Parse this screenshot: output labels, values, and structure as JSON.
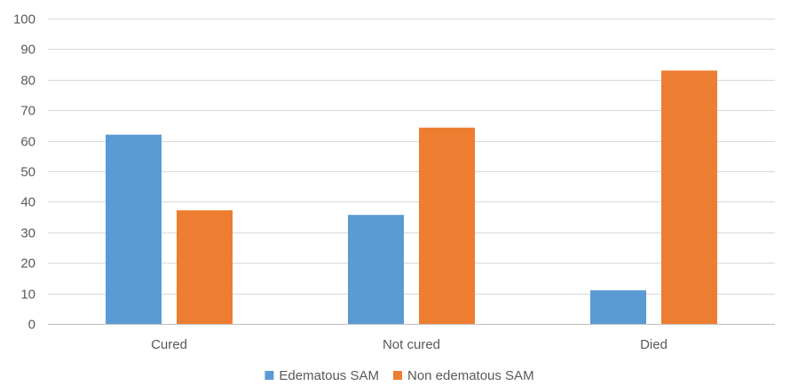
{
  "chart_data": {
    "type": "bar",
    "categories": [
      "Cured",
      "Not cured",
      "Died"
    ],
    "series": [
      {
        "name": "Edematous SAM",
        "color": "#5b9bd5",
        "values": [
          62,
          35.7,
          11
        ]
      },
      {
        "name": "Non edematous SAM",
        "color": "#ed7d31",
        "values": [
          37.2,
          64.3,
          83
        ]
      }
    ],
    "ylim": [
      0,
      100
    ],
    "yticks": [
      0,
      10,
      20,
      30,
      40,
      50,
      60,
      70,
      80,
      90,
      100
    ],
    "grid": true,
    "legend_position": "bottom"
  }
}
